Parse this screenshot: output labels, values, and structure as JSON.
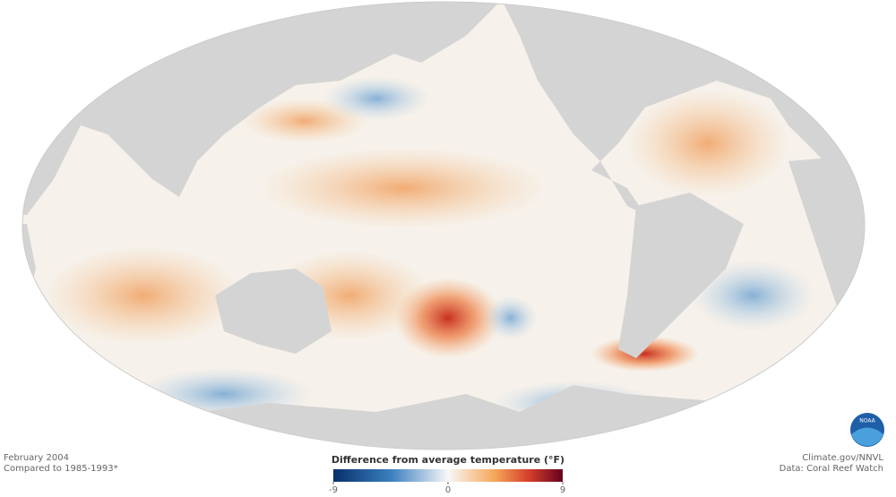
{
  "map": {
    "caption": {
      "date": "February 2004",
      "baseline": "Compared to 1985-1993*"
    },
    "credit": {
      "source": "Climate.gov/NNVL",
      "data": "Data: Coral Reef Watch"
    },
    "logo": "NOAA",
    "legend": {
      "title": "Difference from average temperature (°F)",
      "min": -9,
      "max": 9,
      "ticks": [
        -9,
        0,
        9
      ]
    }
  }
}
